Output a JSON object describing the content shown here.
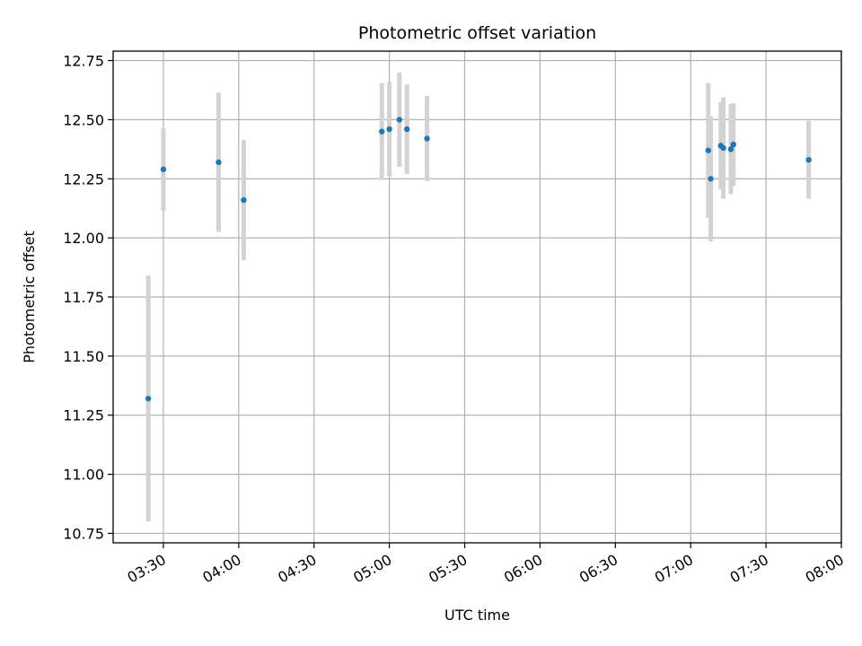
{
  "chart_data": {
    "type": "scatter",
    "title": "Photometric offset variation",
    "xlabel": "UTC time",
    "ylabel": "Photometric offset",
    "grid": true,
    "x_axis": {
      "unit": "time of day (HH:MM UTC)",
      "range": [
        "03:10",
        "08:00"
      ],
      "ticks": [
        "03:30",
        "04:00",
        "04:30",
        "05:00",
        "05:30",
        "06:00",
        "06:30",
        "07:00",
        "07:30",
        "08:00"
      ]
    },
    "y_axis": {
      "range": [
        10.71,
        12.79
      ],
      "ticks": [
        "10.75",
        "11.00",
        "11.25",
        "11.50",
        "11.75",
        "12.00",
        "12.25",
        "12.50",
        "12.75"
      ]
    },
    "colors": {
      "marker": "#1f77b4",
      "errorbar": "#d3d3d3",
      "grid": "#b0b0b0"
    },
    "points": [
      {
        "x": "03:24",
        "y": 11.32,
        "err": 0.52
      },
      {
        "x": "03:30",
        "y": 12.29,
        "err": 0.175
      },
      {
        "x": "03:52",
        "y": 12.32,
        "err": 0.295
      },
      {
        "x": "04:02",
        "y": 12.16,
        "err": 0.255
      },
      {
        "x": "04:57",
        "y": 12.45,
        "err": 0.205
      },
      {
        "x": "05:00",
        "y": 12.46,
        "err": 0.2
      },
      {
        "x": "05:04",
        "y": 12.5,
        "err": 0.2
      },
      {
        "x": "05:07",
        "y": 12.46,
        "err": 0.19
      },
      {
        "x": "05:15",
        "y": 12.42,
        "err": 0.18
      },
      {
        "x": "07:07",
        "y": 12.37,
        "err": 0.285
      },
      {
        "x": "07:08",
        "y": 12.25,
        "err": 0.265
      },
      {
        "x": "07:12",
        "y": 12.39,
        "err": 0.185
      },
      {
        "x": "07:13",
        "y": 12.38,
        "err": 0.215
      },
      {
        "x": "07:16",
        "y": 12.375,
        "err": 0.19
      },
      {
        "x": "07:17",
        "y": 12.395,
        "err": 0.175
      },
      {
        "x": "07:47",
        "y": 12.33,
        "err": 0.165
      }
    ]
  }
}
